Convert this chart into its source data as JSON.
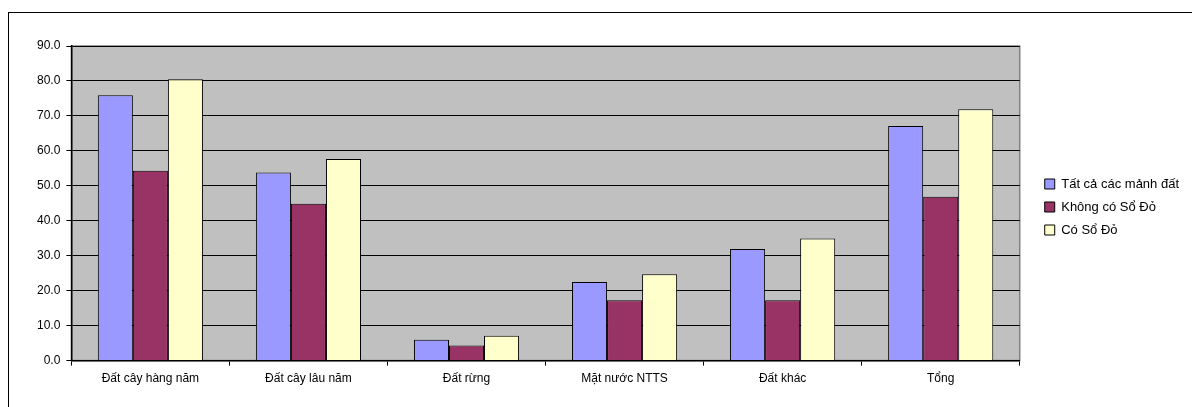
{
  "chart_data": {
    "type": "bar",
    "categories": [
      "Đất cây hàng năm",
      "Đất cây lâu năm",
      "Đất rừng",
      "Mặt nước NTTS",
      "Đất khác",
      "Tổng"
    ],
    "series": [
      {
        "name": "Tất cả các mảnh đất",
        "color": "#9999ff",
        "values": [
          75.9,
          53.8,
          6.0,
          22.5,
          31.9,
          67.1
        ]
      },
      {
        "name": "Không có Sổ Đỏ",
        "color": "#993366",
        "values": [
          54.3,
          44.9,
          4.3,
          17.3,
          17.3,
          46.9
        ]
      },
      {
        "name": "Có Sổ Đỏ",
        "color": "#ffffcc",
        "values": [
          80.5,
          57.7,
          7.1,
          24.7,
          34.9,
          71.9
        ]
      }
    ],
    "ylim": [
      0,
      90
    ],
    "yticks": [
      {
        "value": 0,
        "label": "0.0"
      },
      {
        "value": 10,
        "label": "10.0"
      },
      {
        "value": 20,
        "label": "20.0"
      },
      {
        "value": 30,
        "label": "30.0"
      },
      {
        "value": 40,
        "label": "40.0"
      },
      {
        "value": 50,
        "label": "50.0"
      },
      {
        "value": 60,
        "label": "60.0"
      },
      {
        "value": 70,
        "label": "70.0"
      },
      {
        "value": 80,
        "label": "80.0"
      },
      {
        "value": 90,
        "label": "90.0"
      }
    ],
    "grid": "y",
    "legend": "right"
  }
}
